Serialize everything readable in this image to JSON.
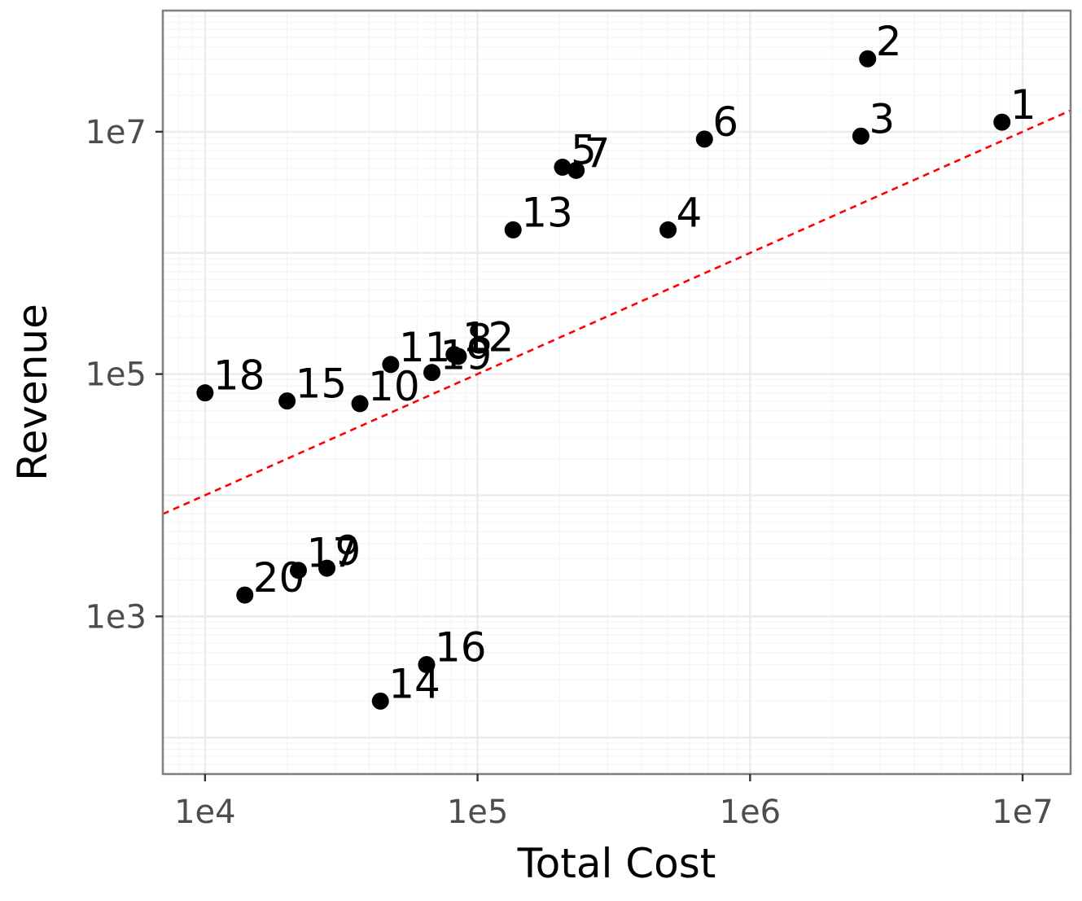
{
  "chart_data": {
    "type": "scatter",
    "title": "",
    "xlabel": "Total Cost",
    "ylabel": "Revenue",
    "x_scale": "log10",
    "y_scale": "log10",
    "xlim": [
      7000,
      15000000
    ],
    "ylim": [
      50,
      100000000
    ],
    "x_ticks": [
      {
        "value": 10000,
        "label": "1e4"
      },
      {
        "value": 100000,
        "label": "1e5"
      },
      {
        "value": 1000000,
        "label": "1e6"
      },
      {
        "value": 10000000,
        "label": "1e7"
      }
    ],
    "y_ticks": [
      {
        "value": 1000,
        "label": "1e3"
      },
      {
        "value": 100000,
        "label": "1e5"
      },
      {
        "value": 10000000,
        "label": "1e7"
      }
    ],
    "grid": true,
    "points": [
      {
        "label": "1",
        "x": 8400000,
        "y": 12000000
      },
      {
        "label": "2",
        "x": 2700000,
        "y": 40000000
      },
      {
        "label": "3",
        "x": 2550000,
        "y": 9200000
      },
      {
        "label": "4",
        "x": 500000,
        "y": 1550000
      },
      {
        "label": "5",
        "x": 205000,
        "y": 5100000
      },
      {
        "label": "6",
        "x": 680000,
        "y": 8700000
      },
      {
        "label": "7",
        "x": 230000,
        "y": 4800000
      },
      {
        "label": "8",
        "x": 85000,
        "y": 140000
      },
      {
        "label": "9",
        "x": 28000,
        "y": 2500
      },
      {
        "label": "10",
        "x": 37000,
        "y": 57000
      },
      {
        "label": "11",
        "x": 48000,
        "y": 120000
      },
      {
        "label": "12",
        "x": 82000,
        "y": 145000
      },
      {
        "label": "13",
        "x": 135000,
        "y": 1550000
      },
      {
        "label": "14",
        "x": 44000,
        "y": 200
      },
      {
        "label": "15",
        "x": 20000,
        "y": 60000
      },
      {
        "label": "16",
        "x": 65000,
        "y": 400
      },
      {
        "label": "17",
        "x": 22000,
        "y": 2400
      },
      {
        "label": "18",
        "x": 10000,
        "y": 70000
      },
      {
        "label": "19",
        "x": 68000,
        "y": 103000
      },
      {
        "label": "20",
        "x": 14000,
        "y": 1500
      }
    ],
    "reference_line": {
      "style": "dashed",
      "color": "#ff0000",
      "slope": 1,
      "intercept": 0
    }
  },
  "colors": {
    "point": "#000000",
    "panel_border": "#7f7f7f",
    "grid_major": "#ebebeb",
    "grid_minor": "#f5f5f5",
    "reference_line": "#ff0000"
  }
}
